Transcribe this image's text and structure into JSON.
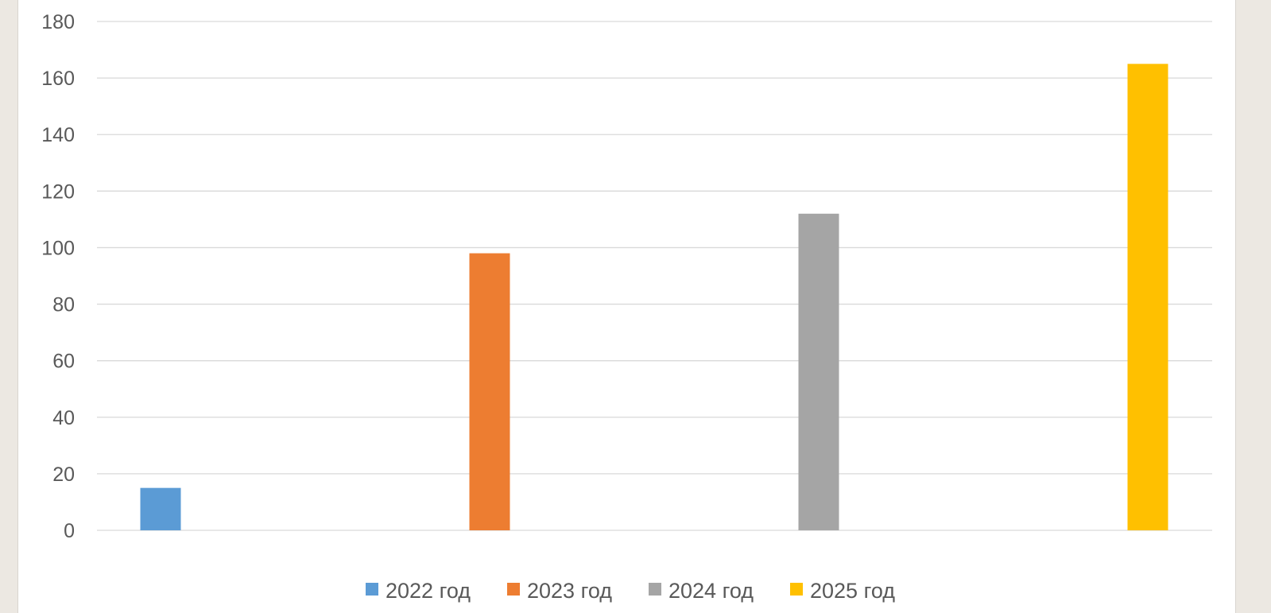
{
  "chart_data": {
    "type": "bar",
    "title": "",
    "xlabel": "",
    "ylabel": "",
    "ylim": [
      0,
      180
    ],
    "yticks": [
      0,
      20,
      40,
      60,
      80,
      100,
      120,
      140,
      160,
      180
    ],
    "grid": true,
    "legend_position": "bottom",
    "series": [
      {
        "name": "2022 год",
        "value": 15,
        "color": "#5b9bd5"
      },
      {
        "name": "2023 год",
        "value": 98,
        "color": "#ed7d31"
      },
      {
        "name": "2024 год",
        "value": 112,
        "color": "#a5a5a5"
      },
      {
        "name": "2025 год",
        "value": 165,
        "color": "#ffc000"
      }
    ]
  }
}
